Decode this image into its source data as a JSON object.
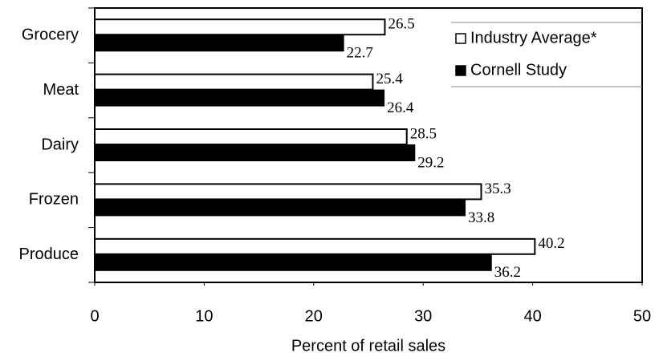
{
  "chart_data": {
    "type": "hbar",
    "categories": [
      "Grocery",
      "Meat",
      "Dairy",
      "Frozen",
      "Produce"
    ],
    "series": [
      {
        "name": "Industry Average*",
        "color": "#ffffff",
        "values": [
          26.5,
          25.4,
          28.5,
          35.3,
          40.2
        ]
      },
      {
        "name": "Cornell Study",
        "color": "#000000",
        "values": [
          22.7,
          26.4,
          29.2,
          33.8,
          36.2
        ]
      }
    ],
    "xlabel": "Percent of retail sales",
    "xlim": [
      0,
      50
    ],
    "xticks": [
      0,
      10,
      20,
      30,
      40,
      50
    ],
    "legend": "upper right"
  }
}
